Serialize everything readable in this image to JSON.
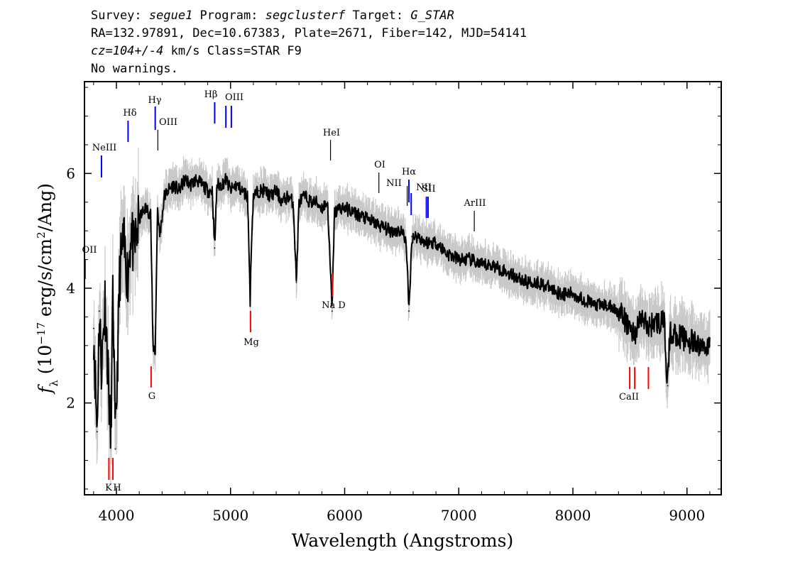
{
  "header": {
    "line1": {
      "survey_label": "Survey: ",
      "survey_value": "segue1",
      "program_label": " Program: ",
      "program_value": "segclusterf",
      "target_label": " Target: ",
      "target_value": "G_STAR"
    },
    "line2": "RA=132.97891, Dec=10.67383, Plate=2671, Fiber=142, MJD=54141",
    "line3": {
      "cz": "cz=104+/-4",
      "rest": " km/s Class=STAR F9"
    },
    "line4": "No warnings."
  },
  "colors": {
    "spectrum": "#000000",
    "noise_band": "#c8c8c8",
    "emission_lines": "#0000ff",
    "absorption_lines": "#ff0000",
    "sky_lines": "#000000"
  },
  "chart_data": {
    "type": "line",
    "xlabel": "Wavelength (Angstroms)",
    "ylabel": "f_λ (10^-17 erg/s/cm^2/Ang)",
    "xlim": [
      3720,
      9300
    ],
    "ylim": [
      0.4,
      7.6
    ],
    "x_ticks": [
      4000,
      5000,
      6000,
      7000,
      8000,
      9000
    ],
    "y_ticks": [
      2,
      4,
      6
    ],
    "series": [
      {
        "x": [
          3800,
          3830,
          3850,
          3870,
          3900,
          3930,
          3950,
          3970,
          3990,
          4030,
          4060,
          4100,
          4130,
          4150,
          4200,
          4250,
          4300,
          4320,
          4340,
          4360,
          4380,
          4420,
          4450,
          4500,
          4550,
          4600,
          4650,
          4700,
          4750,
          4800,
          4840,
          4861,
          4880,
          4920,
          4960,
          5000,
          5050,
          5100,
          5150,
          5172,
          5183,
          5200,
          5250,
          5300,
          5350,
          5400,
          5450,
          5500,
          5550,
          5577,
          5600,
          5650,
          5700,
          5750,
          5800,
          5850,
          5890,
          5910,
          5950,
          6000,
          6100,
          6200,
          6300,
          6400,
          6500,
          6540,
          6563,
          6590,
          6650,
          6700,
          6800,
          6900,
          7000,
          7100,
          7200,
          7300,
          7400,
          7500,
          7600,
          7700,
          7800,
          7900,
          8000,
          8100,
          8200,
          8300,
          8400,
          8498,
          8542,
          8600,
          8662,
          8700,
          8800,
          8830,
          8850,
          8900,
          9000,
          9100,
          9200
        ],
        "y": [
          3.3,
          1.5,
          3.6,
          2.6,
          3.8,
          2.4,
          1.3,
          4.0,
          1.2,
          4.3,
          4.8,
          4.2,
          5.1,
          4.6,
          5.2,
          5.4,
          5.3,
          3.0,
          2.9,
          5.4,
          4.9,
          5.6,
          5.7,
          5.8,
          5.7,
          5.9,
          5.8,
          5.9,
          5.8,
          5.7,
          5.7,
          4.7,
          5.8,
          5.8,
          5.9,
          5.7,
          5.8,
          5.7,
          5.6,
          3.8,
          4.8,
          5.6,
          5.7,
          5.7,
          5.6,
          5.7,
          5.5,
          5.6,
          5.5,
          4.1,
          5.5,
          5.6,
          5.5,
          5.5,
          5.4,
          5.5,
          3.6,
          5.3,
          5.4,
          5.4,
          5.3,
          5.2,
          5.1,
          5.0,
          5.0,
          4.8,
          3.6,
          4.9,
          4.9,
          4.8,
          4.8,
          4.6,
          4.5,
          4.5,
          4.4,
          4.4,
          4.3,
          4.2,
          4.1,
          4.1,
          4.0,
          3.9,
          3.9,
          3.8,
          3.7,
          3.7,
          3.6,
          3.3,
          3.2,
          3.5,
          3.3,
          3.4,
          3.4,
          2.3,
          3.2,
          3.2,
          3.1,
          3.0,
          3.0
        ]
      }
    ],
    "line_markers": [
      {
        "label": "OII",
        "wavelength": 3727,
        "kind": "sky"
      },
      {
        "label": "NeIII",
        "wavelength": 3869,
        "kind": "emission"
      },
      {
        "label": "K",
        "wavelength": 3934,
        "kind": "absorption"
      },
      {
        "label": "H",
        "wavelength": 3969,
        "kind": "absorption"
      },
      {
        "label": "Hδ",
        "wavelength": 4102,
        "kind": "emission"
      },
      {
        "label": "G",
        "wavelength": 4304,
        "kind": "absorption"
      },
      {
        "label": "Hγ",
        "wavelength": 4340,
        "kind": "emission"
      },
      {
        "label": "OIII",
        "wavelength": 4363,
        "kind": "sky"
      },
      {
        "label": "Hβ",
        "wavelength": 4861,
        "kind": "emission"
      },
      {
        "label": "OIII",
        "wavelength": 4959,
        "kind": "emission"
      },
      {
        "label": "OIII",
        "wavelength": 5007,
        "kind": "emission"
      },
      {
        "label": "Mg",
        "wavelength": 5175,
        "kind": "absorption"
      },
      {
        "label": "HeI",
        "wavelength": 5876,
        "kind": "sky"
      },
      {
        "label": "Na D",
        "wavelength": 5893,
        "kind": "absorption"
      },
      {
        "label": "OI",
        "wavelength": 6300,
        "kind": "sky"
      },
      {
        "label": "NII",
        "wavelength": 6548,
        "kind": "sky"
      },
      {
        "label": "Hα",
        "wavelength": 6563,
        "kind": "emission"
      },
      {
        "label": "NII",
        "wavelength": 6583,
        "kind": "emission"
      },
      {
        "label": "SII",
        "wavelength": 6716,
        "kind": "emission"
      },
      {
        "label": "SII",
        "wavelength": 6731,
        "kind": "emission"
      },
      {
        "label": "ArIII",
        "wavelength": 7136,
        "kind": "sky"
      },
      {
        "label": "CaII",
        "wavelength": 8498,
        "kind": "absorption"
      },
      {
        "label": "CaII",
        "wavelength": 8542,
        "kind": "absorption"
      },
      {
        "label": "CaII",
        "wavelength": 8662,
        "kind": "absorption"
      }
    ]
  }
}
